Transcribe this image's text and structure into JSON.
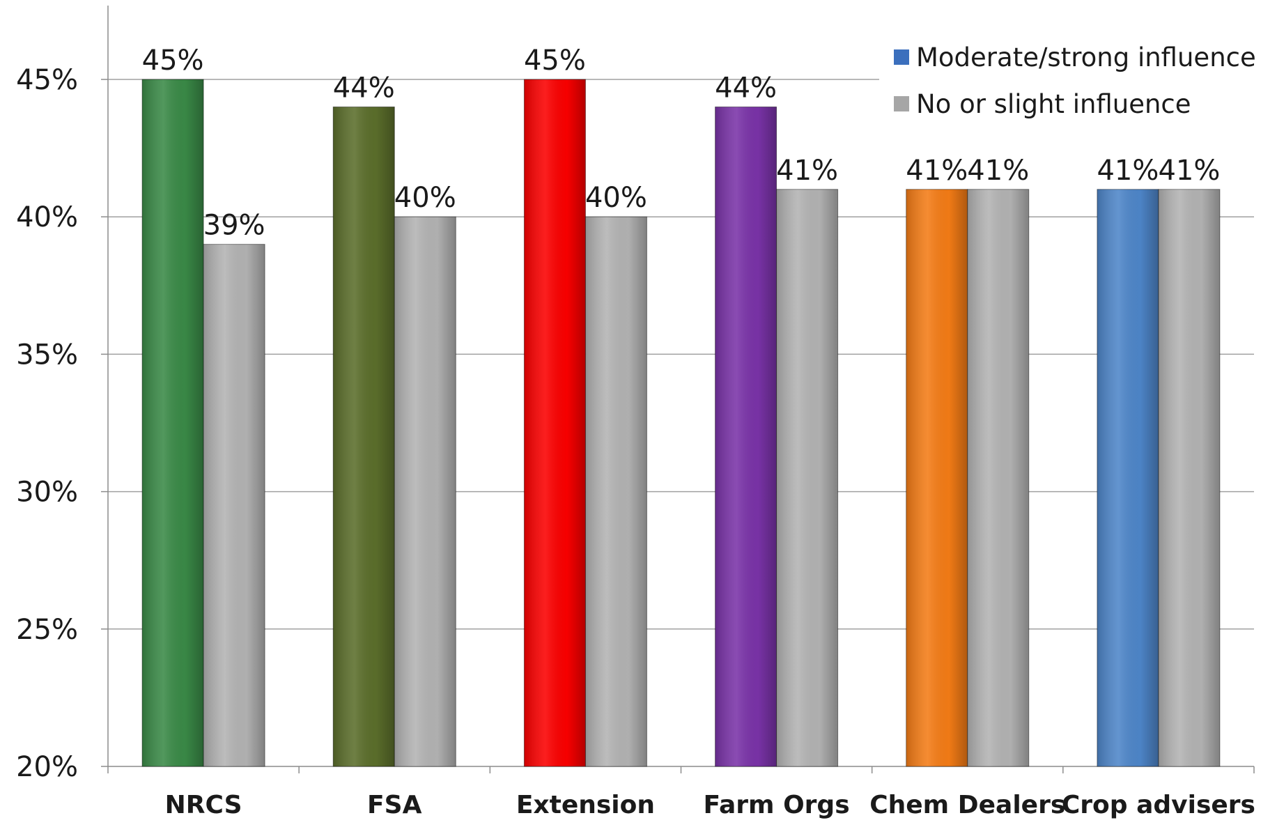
{
  "chart_data": {
    "type": "bar",
    "title": "",
    "xlabel": "",
    "ylabel": "",
    "ylim": [
      20,
      45
    ],
    "y_ticks": [
      "20%",
      "25%",
      "30%",
      "35%",
      "40%",
      "45%"
    ],
    "categories": [
      "NRCS",
      "FSA",
      "Extension",
      "Farm Orgs",
      "Chem Dealers",
      "Crop advisers"
    ],
    "series": [
      {
        "name": "Moderate/strong influence",
        "values": [
          45,
          44,
          45,
          44,
          41,
          41
        ],
        "labels": [
          "45%",
          "44%",
          "45%",
          "44%",
          "41%",
          "41%"
        ],
        "colors": [
          "#3a8a47",
          "#5b6e2b",
          "#fb0000",
          "#7a33a8",
          "#f47c16",
          "#4e86c9"
        ],
        "legend_color": "#3b6fbd"
      },
      {
        "name": "No or slight influence",
        "values": [
          39,
          40,
          40,
          41,
          41,
          41
        ],
        "labels": [
          "39%",
          "40%",
          "40%",
          "41%",
          "41%",
          "41%"
        ],
        "colors": [
          "#b3b3b3",
          "#b3b3b3",
          "#b3b3b3",
          "#b3b3b3",
          "#b3b3b3",
          "#b3b3b3"
        ],
        "legend_color": "#a6a6a6"
      }
    ],
    "grid": true,
    "legend_position": "top-right"
  }
}
